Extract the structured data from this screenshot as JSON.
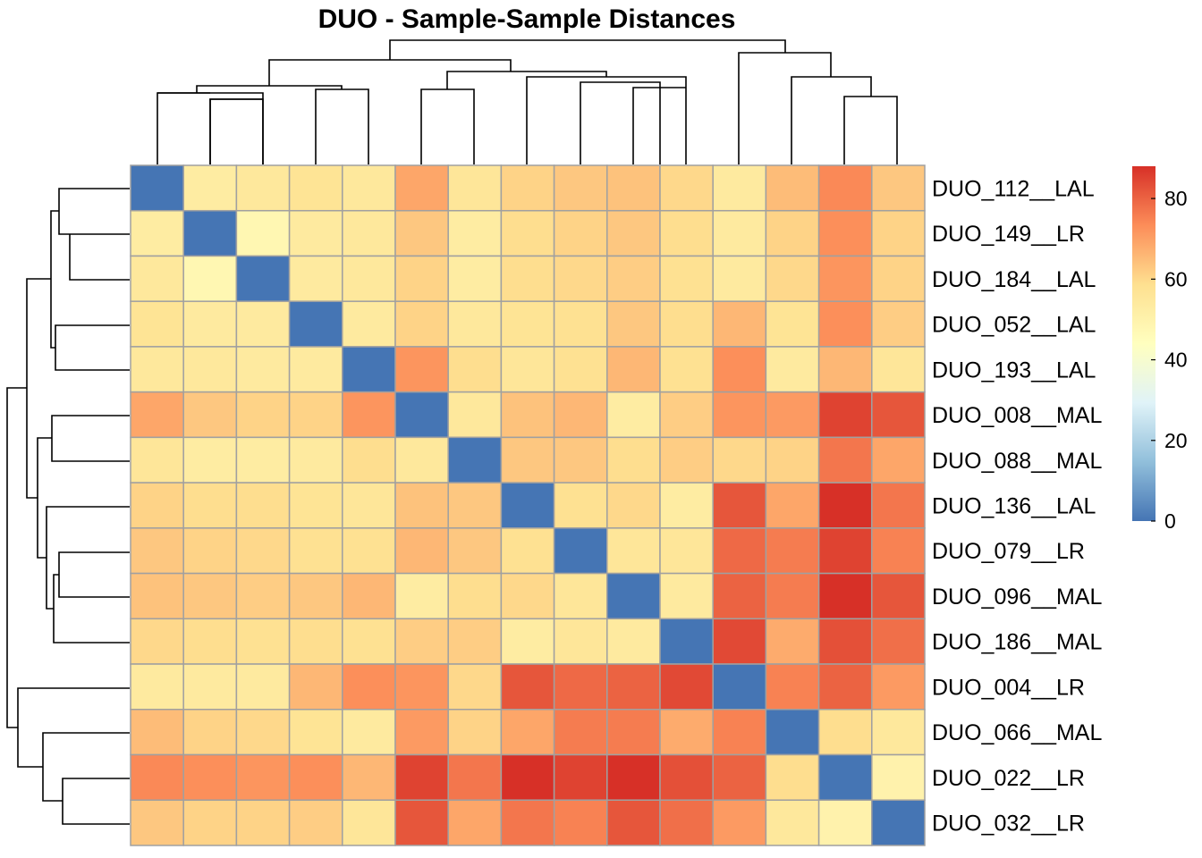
{
  "chart_data": {
    "type": "heatmap",
    "title": "DUO - Sample-Sample Distances",
    "labels": [
      "DUO_112__LAL",
      "DUO_149__LR",
      "DUO_184__LAL",
      "DUO_052__LAL",
      "DUO_193__LAL",
      "DUO_008__MAL",
      "DUO_088__MAL",
      "DUO_136__LAL",
      "DUO_079__LR",
      "DUO_096__MAL",
      "DUO_186__MAL",
      "DUO_004__LR",
      "DUO_066__MAL",
      "DUO_022__LR",
      "DUO_032__LR"
    ],
    "values": [
      [
        0,
        53,
        55,
        57,
        55,
        69,
        56,
        61,
        63,
        64,
        60,
        54,
        65,
        74,
        63
      ],
      [
        53,
        0,
        48,
        54,
        55,
        63,
        53,
        59,
        61,
        63,
        59,
        54,
        61,
        73,
        61
      ],
      [
        55,
        48,
        0,
        54,
        55,
        61,
        53,
        59,
        60,
        62,
        58,
        54,
        60,
        72,
        61
      ],
      [
        57,
        54,
        54,
        0,
        54,
        61,
        55,
        57,
        58,
        63,
        59,
        66,
        57,
        73,
        62
      ],
      [
        55,
        55,
        54,
        54,
        0,
        72,
        59,
        56,
        58,
        66,
        58,
        73,
        54,
        66,
        56
      ],
      [
        69,
        63,
        61,
        61,
        72,
        0,
        55,
        64,
        66,
        53,
        62,
        72,
        71,
        85,
        82
      ],
      [
        56,
        53,
        53,
        54,
        59,
        55,
        0,
        63,
        63,
        59,
        62,
        60,
        61,
        77,
        69
      ],
      [
        61,
        59,
        59,
        57,
        56,
        64,
        63,
        0,
        58,
        60,
        53,
        82,
        69,
        88,
        77
      ],
      [
        63,
        61,
        60,
        58,
        58,
        66,
        63,
        58,
        0,
        56,
        56,
        79,
        76,
        85,
        75
      ],
      [
        64,
        63,
        62,
        63,
        66,
        53,
        59,
        60,
        56,
        0,
        54,
        80,
        76,
        89,
        82
      ],
      [
        60,
        59,
        58,
        59,
        58,
        62,
        62,
        53,
        56,
        54,
        0,
        84,
        68,
        83,
        78
      ],
      [
        54,
        54,
        54,
        66,
        73,
        72,
        60,
        82,
        79,
        80,
        84,
        0,
        75,
        80,
        71
      ],
      [
        65,
        61,
        60,
        57,
        54,
        71,
        61,
        69,
        76,
        76,
        68,
        75,
        0,
        59,
        55
      ],
      [
        74,
        73,
        72,
        73,
        66,
        85,
        77,
        88,
        85,
        89,
        83,
        80,
        59,
        0,
        50
      ],
      [
        63,
        61,
        61,
        62,
        56,
        82,
        69,
        77,
        75,
        82,
        78,
        71,
        55,
        50,
        0
      ]
    ],
    "colorscale": {
      "min": 0,
      "max": 88,
      "stops": [
        "#4575B4",
        "#91BFDB",
        "#E0F3F8",
        "#FFFFBF",
        "#FEE090",
        "#FC8D59",
        "#D73027"
      ]
    },
    "legend_ticks": [
      "0",
      "20",
      "40",
      "60",
      "80"
    ],
    "cell_border_color": "#A0A0A0"
  }
}
